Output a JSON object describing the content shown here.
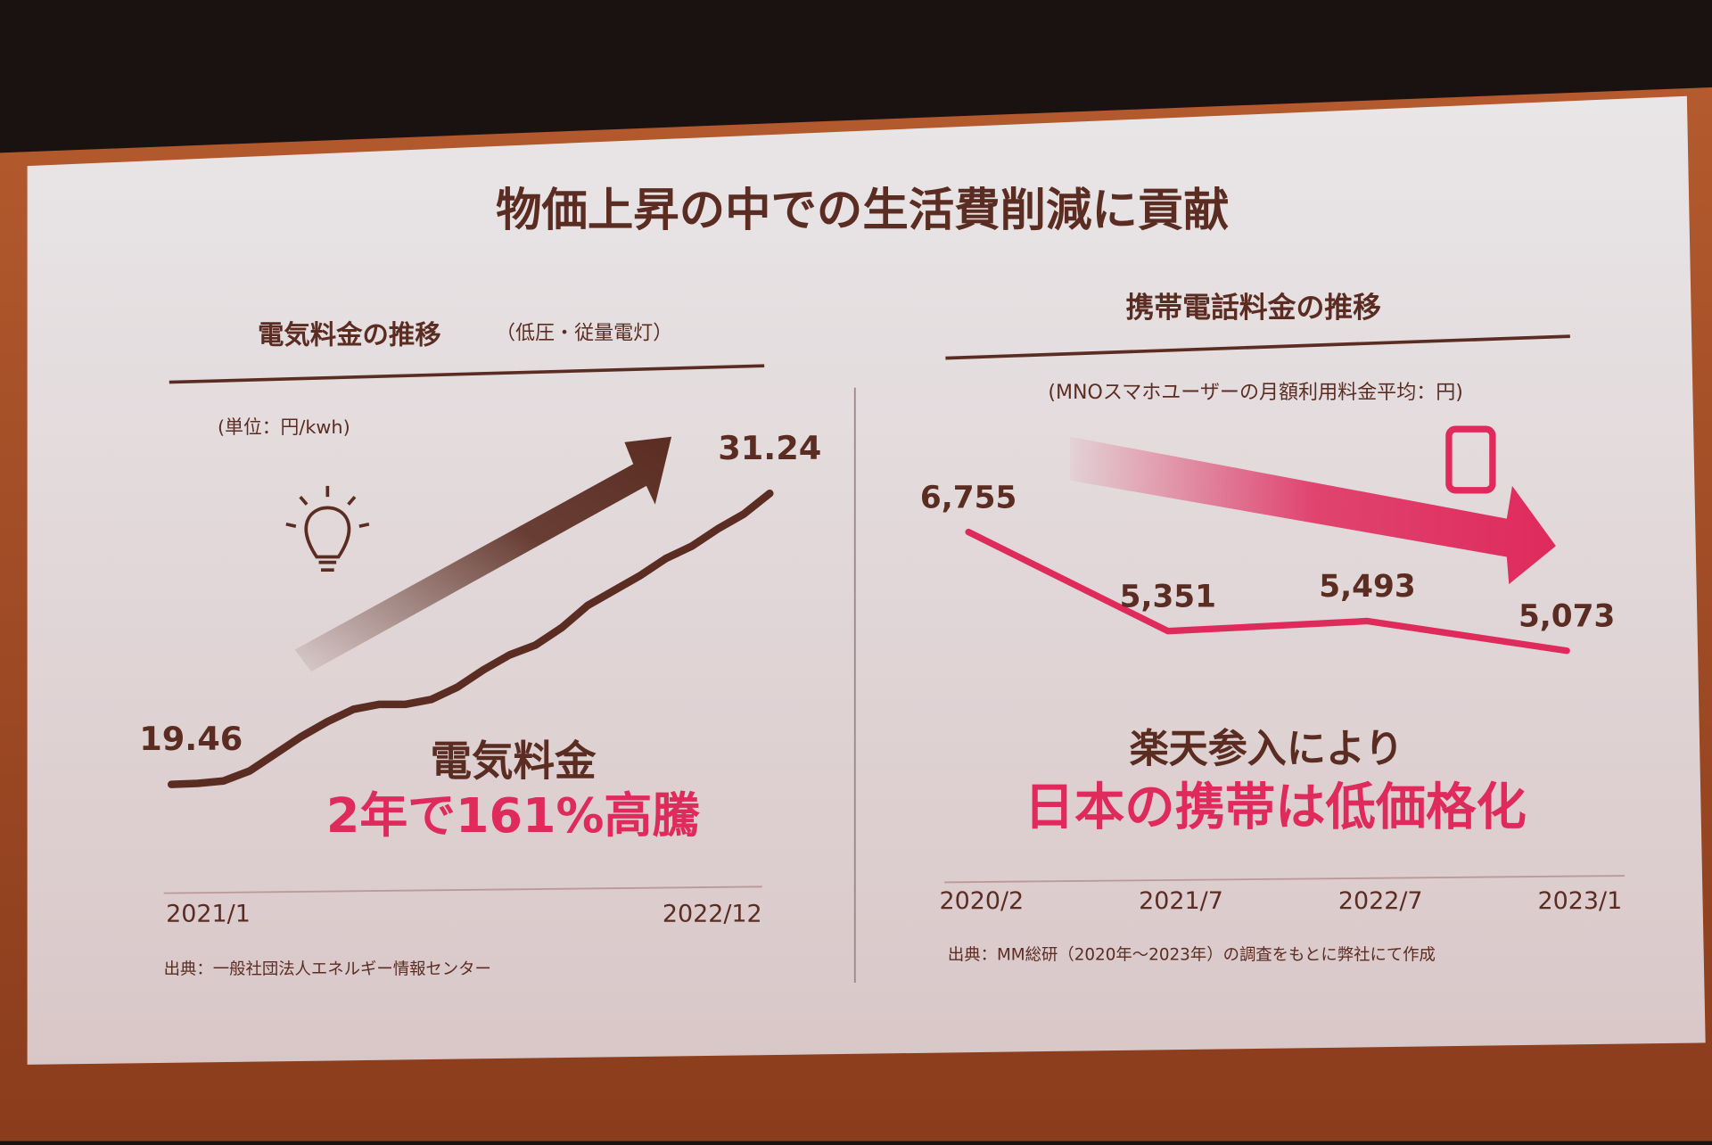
{
  "slide": {
    "title": "物価上昇の中での生活費削減に貢献"
  },
  "chart_data": [
    {
      "type": "line",
      "title": "電気料金の推移",
      "subtitle": "（低圧・従量電灯）",
      "unit": "(単位：円/kwh)",
      "categories": [
        "2021/1",
        null,
        null,
        null,
        null,
        null,
        null,
        null,
        null,
        null,
        null,
        null,
        null,
        null,
        null,
        null,
        null,
        null,
        null,
        null,
        null,
        null,
        null,
        "2022/12"
      ],
      "values": [
        19.46,
        19.5,
        19.6,
        20.0,
        20.7,
        21.4,
        22.0,
        22.5,
        22.7,
        22.7,
        22.9,
        23.4,
        24.1,
        24.7,
        25.1,
        25.8,
        26.7,
        27.3,
        27.9,
        28.6,
        29.1,
        29.8,
        30.4,
        31.24
      ],
      "value_labels": [
        "19.46",
        null,
        null,
        null,
        null,
        null,
        null,
        null,
        null,
        null,
        null,
        null,
        null,
        null,
        null,
        null,
        null,
        null,
        null,
        null,
        null,
        null,
        null,
        "31.24"
      ],
      "color": "#5b2d22",
      "ylim": [
        17,
        33
      ],
      "headline": [
        "電気料金",
        "2年で161%高騰"
      ],
      "source": "出典：一般社団法人エネルギー情報センター"
    },
    {
      "type": "line",
      "title": "携帯電話料金の推移",
      "unit": "(MNOスマホユーザーの月額利用料金平均：円)",
      "categories": [
        "2020/2",
        "2021/7",
        "2022/7",
        "2023/1"
      ],
      "values": [
        6755,
        5351,
        5493,
        5073
      ],
      "value_labels": [
        "6,755",
        "5,351",
        "5,493",
        "5,073"
      ],
      "color": "#df2a5c",
      "ylim": [
        4500,
        7500
      ],
      "headline": [
        "楽天参入により",
        "日本の携帯は低価格化"
      ],
      "source": "出典：MM総研（2020年～2023年）の調査をもとに弊社にて作成"
    }
  ]
}
